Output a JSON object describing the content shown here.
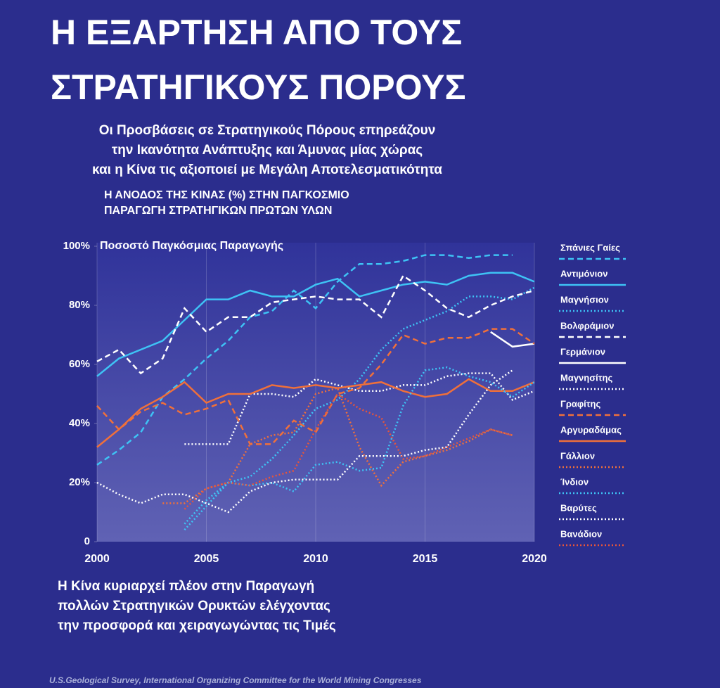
{
  "chart_data": {
    "type": "line",
    "title_lines": [
      "Η ΕΞΑΡΤΗΣΗ ΑΠΟ ΤΟΥΣ",
      "ΣΤΡΑΤΗΓΙΚΟΥΣ ΠΟΡΟΥΣ"
    ],
    "subtitle_lines": [
      "Οι Προσβάσεις σε Στρατηγικούς Πόρους  επηρεάζουν",
      "την Ικανότητα Ανάπτυξης και  Άμυνας  μίας χώρας",
      "και η Κίνα τις αξιοποιεί με Μεγάλη Αποτελεσματικότητα"
    ],
    "chart_title_lines": [
      "Η ΑΝΟΔΟΣ ΤΗΣ ΚΙΝΑΣ (%) ΣΤΗΝ ΠΑΓΚΟΣΜΙΟ",
      "ΠΑΡΑΓΩΓΗ  ΣΤΡΑΤΗΓΙΚΩΝ  ΠΡΩΤΩΝ  ΥΛΩΝ"
    ],
    "y_label": "Ποσοστό Παγκόσμιας  Παραγωγής",
    "annotation_lines": [
      "Η Κίνα κυριαρχεί πλέον στην Παραγωγή",
      "πολλών Στρατηγικών Ορυκτών ελέγχοντας",
      "την προσφορά και χειραγωγώντας  τις Τιμές"
    ],
    "source": "U.S.Geological Survey, International Organizing  Committee for the World Mining Congresses",
    "x": [
      2000,
      2001,
      2002,
      2003,
      2004,
      2005,
      2006,
      2007,
      2008,
      2009,
      2010,
      2011,
      2012,
      2013,
      2014,
      2015,
      2016,
      2017,
      2018,
      2019,
      2020
    ],
    "xlim": [
      2000,
      2020
    ],
    "xticks": [
      2000,
      2005,
      2010,
      2015,
      2020
    ],
    "ylim": [
      0,
      100
    ],
    "yticks": [
      0,
      {
        "value": 20,
        "label": "20%"
      },
      {
        "value": 40,
        "label": "40%"
      },
      {
        "value": 60,
        "label": "60%"
      },
      {
        "value": 80,
        "label": "80%"
      },
      {
        "value": 100,
        "label": "100%"
      }
    ],
    "grid": true,
    "series": [
      {
        "name": "Σπάνιες Γαίες",
        "color": "#3ec3f5",
        "dash": "dashed",
        "values": [
          26,
          31,
          37,
          49,
          55,
          62,
          68,
          76,
          78,
          85,
          79,
          88,
          94,
          94,
          95,
          97,
          97,
          96,
          97,
          97,
          null
        ]
      },
      {
        "name": "Αντιμόνιον",
        "color": "#3ec3f5",
        "dash": "solid",
        "values": [
          56,
          62,
          65,
          68,
          75,
          82,
          82,
          85,
          83,
          83,
          87,
          89,
          83,
          85,
          87,
          88,
          87,
          90,
          91,
          91,
          88
        ]
      },
      {
        "name": "Μαγνήσιον",
        "color": "#3ec3f5",
        "dash": "dotted",
        "values": [
          null,
          null,
          null,
          null,
          4,
          12,
          20,
          22,
          28,
          36,
          45,
          48,
          55,
          65,
          72,
          75,
          78,
          83,
          83,
          82,
          86
        ]
      },
      {
        "name": "Βολφράμιον",
        "color": "#ffffff",
        "dash": "dashed",
        "values": [
          61,
          65,
          57,
          62,
          79,
          71,
          76,
          76,
          81,
          82,
          83,
          82,
          82,
          76,
          90,
          85,
          79,
          76,
          80,
          83,
          85
        ]
      },
      {
        "name": "Γερμάνιον",
        "color": "#ffffff",
        "dash": "solid",
        "values": [
          null,
          null,
          null,
          null,
          null,
          null,
          null,
          null,
          null,
          null,
          null,
          null,
          null,
          null,
          null,
          null,
          null,
          null,
          71,
          66,
          67
        ]
      },
      {
        "name": "Μαγνησίτης",
        "color": "#ffffff",
        "dash": "dotted",
        "values": [
          null,
          null,
          null,
          null,
          33,
          33,
          33,
          50,
          50,
          49,
          55,
          53,
          51,
          51,
          53,
          53,
          56,
          57,
          57,
          48,
          51
        ]
      },
      {
        "name": "Γραφίτης",
        "color": "#f0703a",
        "dash": "dashed",
        "values": [
          46,
          38,
          44,
          47,
          43,
          45,
          48,
          33,
          33,
          41,
          37,
          50,
          52,
          60,
          70,
          67,
          69,
          69,
          72,
          72,
          67
        ]
      },
      {
        "name": "Αργυραδάμας",
        "color": "#f0703a",
        "dash": "solid",
        "values": [
          32,
          38,
          45,
          49,
          54,
          47,
          50,
          50,
          53,
          52,
          53,
          52,
          53,
          54,
          51,
          49,
          50,
          55,
          51,
          51,
          54
        ]
      },
      {
        "name": "Γάλλιον",
        "color": "#f0703a",
        "dash": "dotted",
        "values": [
          null,
          null,
          null,
          13,
          13,
          18,
          20,
          33,
          36,
          37,
          50,
          52,
          32,
          19,
          27,
          29,
          31,
          34,
          38,
          36,
          null
        ]
      },
      {
        "name": "Ίνδιον",
        "color": "#3ec3f5",
        "dash": "dotted",
        "values": [
          null,
          null,
          null,
          null,
          6,
          14,
          20,
          19,
          20,
          17,
          26,
          27,
          24,
          25,
          46,
          58,
          59,
          56,
          54,
          49,
          54
        ]
      },
      {
        "name": "Βαρύτες",
        "color": "#ffffff",
        "dash": "dotted",
        "values": [
          20,
          16,
          13,
          16,
          16,
          13,
          10,
          17,
          20,
          21,
          21,
          21,
          29,
          29,
          29,
          31,
          32,
          43,
          53,
          58,
          null
        ]
      },
      {
        "name": "Βανάδιον",
        "color": "#e8553a",
        "dash": "dotted",
        "values": [
          null,
          null,
          null,
          null,
          11,
          18,
          20,
          19,
          22,
          24,
          38,
          50,
          45,
          42,
          28,
          29,
          32,
          35,
          38,
          36,
          null
        ]
      }
    ]
  }
}
